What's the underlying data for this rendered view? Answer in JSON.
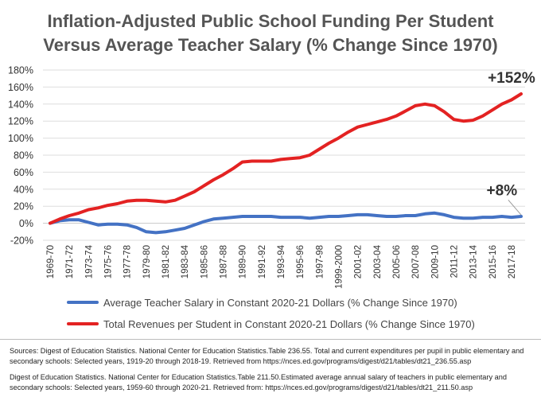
{
  "chart_data": {
    "type": "line",
    "title_line1": "Inflation-Adjusted Public School Funding Per Student",
    "title_line2": "Versus Average Teacher Salary (% Change Since 1970)",
    "x": [
      "1969-70",
      "1970-71",
      "1971-72",
      "1972-73",
      "1973-74",
      "1974-75",
      "1975-76",
      "1976-77",
      "1977-78",
      "1978-79",
      "1979-80",
      "1980-81",
      "1981-82",
      "1982-83",
      "1983-84",
      "1984-85",
      "1985-86",
      "1986-87",
      "1987-88",
      "1988-89",
      "1989-90",
      "1990-91",
      "1991-92",
      "1992-93",
      "1993-94",
      "1994-95",
      "1995-96",
      "1996-97",
      "1997-98",
      "1998-99",
      "1999-2000",
      "2000-01",
      "2001-02",
      "2002-03",
      "2003-04",
      "2004-05",
      "2005-06",
      "2006-07",
      "2007-08",
      "2008-09",
      "2009-10",
      "2010-11",
      "2011-12",
      "2012-13",
      "2013-14",
      "2014-15",
      "2015-16",
      "2016-17",
      "2017-18",
      "2018-19"
    ],
    "x_tick_labels": [
      "1969-70",
      "1971-72",
      "1973-74",
      "1975-76",
      "1977-78",
      "1979-80",
      "1981-82",
      "1983-84",
      "1985-86",
      "1987-88",
      "1989-90",
      "1991-92",
      "1993-94",
      "1995-96",
      "1997-98",
      "1999-2000",
      "2001-02",
      "2003-04",
      "2005-06",
      "2007-08",
      "2009-10",
      "2011-12",
      "2013-14",
      "2015-16",
      "2017-18"
    ],
    "y_tick_labels": [
      "-20%",
      "0%",
      "20%",
      "40%",
      "60%",
      "80%",
      "100%",
      "120%",
      "140%",
      "160%",
      "180%"
    ],
    "ylim": [
      -20,
      180
    ],
    "y_step": 20,
    "grid": true,
    "series": [
      {
        "name": "Average Teacher Salary in Constant 2020-21 Dollars (% Change Since 1970)",
        "color": "#4472c4",
        "values": [
          0,
          3,
          4,
          4,
          1,
          -2,
          -1,
          -1,
          -2,
          -5,
          -10,
          -11,
          -10,
          -8,
          -6,
          -2,
          2,
          5,
          6,
          7,
          8,
          8,
          8,
          8,
          7,
          7,
          7,
          6,
          7,
          8,
          8,
          9,
          10,
          10,
          9,
          8,
          8,
          9,
          9,
          11,
          12,
          10,
          7,
          6,
          6,
          7,
          7,
          8,
          7,
          8
        ]
      },
      {
        "name": "Total Revenues per Student in Constant 2020-21 Dollars (% Change Since 1970)",
        "color": "#e32222",
        "values": [
          0,
          5,
          9,
          12,
          16,
          18,
          21,
          23,
          26,
          27,
          27,
          26,
          25,
          27,
          32,
          37,
          44,
          51,
          57,
          64,
          72,
          73,
          73,
          73,
          75,
          76,
          77,
          80,
          87,
          94,
          100,
          107,
          113,
          116,
          119,
          122,
          126,
          132,
          138,
          140,
          138,
          131,
          122,
          120,
          121,
          126,
          133,
          140,
          145,
          152
        ]
      }
    ],
    "annotations": [
      {
        "text": "+152%",
        "x": "2017-18",
        "y": 165
      },
      {
        "text": "+8%",
        "x": "2016-17",
        "y": 33
      }
    ]
  },
  "sources": {
    "para1": "Sources: Digest of Education Statistics. National Center for Education Statistics.Table 236.55. Total and current expenditures per pupil in public elementary and secondary schools: Selected years, 1919-20 through 2018-19. Retrieved from https://nces.ed.gov/programs/digest/d21/tables/dt21_236.55.asp",
    "para2": "Digest of Education Statistics. National Center for Education Statistics.Table 211.50.Estimated average annual salary of teachers in public elementary and secondary schools: Selected years, 1959-60 through 2020-21. Retrieved from: https://nces.ed.gov/programs/digest/d21/tables/dt21_211.50.asp"
  }
}
